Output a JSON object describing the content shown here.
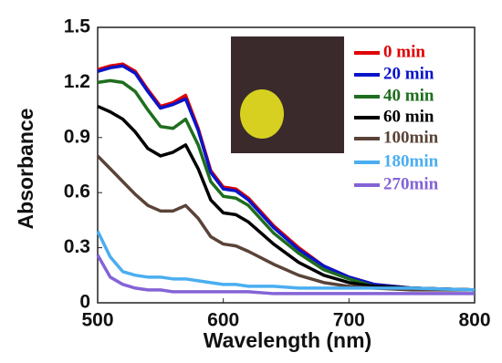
{
  "chart_data": {
    "type": "line",
    "x_label": "Wavelength (nm)",
    "y_label": "Absorbance",
    "x": [
      500,
      510,
      520,
      530,
      540,
      550,
      560,
      570,
      580,
      590,
      600,
      610,
      620,
      640,
      660,
      680,
      700,
      720,
      750,
      800
    ],
    "xlim": [
      500,
      800
    ],
    "xticks": [
      500,
      600,
      700,
      800
    ],
    "ylim": [
      0,
      1.5
    ],
    "yticks": [
      0,
      0.3,
      0.6,
      0.9,
      1.2,
      1.5
    ],
    "series": [
      {
        "name": "0 min",
        "color": "#e00000",
        "values": [
          1.27,
          1.29,
          1.3,
          1.26,
          1.16,
          1.07,
          1.09,
          1.13,
          0.95,
          0.72,
          0.63,
          0.62,
          0.57,
          0.42,
          0.3,
          0.2,
          0.14,
          0.1,
          0.08,
          0.07
        ]
      },
      {
        "name": "20 min",
        "color": "#0a14c8",
        "values": [
          1.26,
          1.28,
          1.29,
          1.25,
          1.15,
          1.06,
          1.08,
          1.11,
          0.94,
          0.71,
          0.62,
          0.61,
          0.56,
          0.41,
          0.29,
          0.2,
          0.14,
          0.1,
          0.08,
          0.07
        ]
      },
      {
        "name": "40 min",
        "color": "#1e6e1e",
        "values": [
          1.2,
          1.21,
          1.2,
          1.15,
          1.05,
          0.96,
          0.95,
          1.0,
          0.86,
          0.66,
          0.58,
          0.57,
          0.53,
          0.38,
          0.27,
          0.18,
          0.13,
          0.09,
          0.08,
          0.07
        ]
      },
      {
        "name": "60 min",
        "color": "#000000",
        "values": [
          1.07,
          1.04,
          1.0,
          0.93,
          0.84,
          0.8,
          0.82,
          0.86,
          0.73,
          0.56,
          0.49,
          0.48,
          0.44,
          0.32,
          0.22,
          0.15,
          0.11,
          0.09,
          0.08,
          0.07
        ]
      },
      {
        "name": "100min",
        "color": "#5a4338",
        "values": [
          0.8,
          0.73,
          0.66,
          0.59,
          0.53,
          0.5,
          0.5,
          0.53,
          0.46,
          0.36,
          0.32,
          0.31,
          0.28,
          0.21,
          0.15,
          0.11,
          0.09,
          0.08,
          0.07,
          0.07
        ]
      },
      {
        "name": "180min",
        "color": "#4aaef0",
        "values": [
          0.39,
          0.25,
          0.17,
          0.15,
          0.14,
          0.14,
          0.13,
          0.13,
          0.12,
          0.11,
          0.1,
          0.1,
          0.09,
          0.09,
          0.08,
          0.08,
          0.08,
          0.08,
          0.08,
          0.07
        ]
      },
      {
        "name": "270min",
        "color": "#8463d6",
        "values": [
          0.26,
          0.14,
          0.1,
          0.08,
          0.07,
          0.07,
          0.06,
          0.06,
          0.06,
          0.06,
          0.06,
          0.06,
          0.06,
          0.05,
          0.05,
          0.05,
          0.05,
          0.05,
          0.05,
          0.05
        ]
      }
    ]
  }
}
